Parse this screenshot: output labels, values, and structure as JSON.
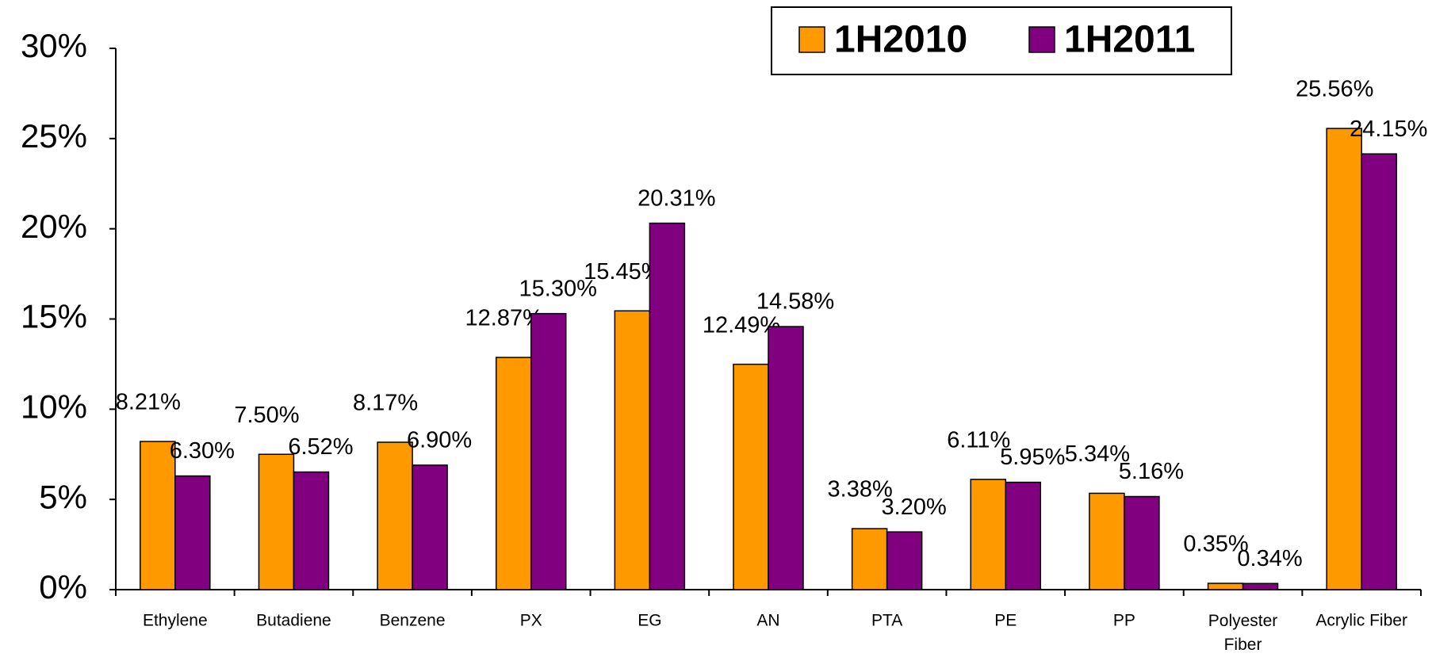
{
  "chart_data": {
    "type": "bar",
    "categories": [
      "Ethylene",
      "Butadiene",
      "Benzene",
      "PX",
      "EG",
      "AN",
      "PTA",
      "PE",
      "PP",
      "Polyester Fiber",
      "Acrylic Fiber"
    ],
    "series": [
      {
        "name": "1H2010",
        "color": "#ff9900",
        "values": [
          8.21,
          7.5,
          8.17,
          12.87,
          15.45,
          12.49,
          3.38,
          6.11,
          5.34,
          0.35,
          25.56
        ],
        "value_labels": [
          "8.21%",
          "7.50%",
          "8.17%",
          "12.87%",
          "15.45%",
          "12.49%",
          "3.38%",
          "6.11%",
          "5.34%",
          "0.35%",
          "25.56%"
        ]
      },
      {
        "name": "1H2011",
        "color": "#800080",
        "values": [
          6.3,
          6.52,
          6.9,
          15.3,
          20.31,
          14.58,
          3.2,
          5.95,
          5.16,
          0.34,
          24.15
        ],
        "value_labels": [
          "6.30%",
          "6.52%",
          "6.90%",
          "15.30%",
          "20.31%",
          "14.58%",
          "3.20%",
          "5.95%",
          "5.16%",
          "0.34%",
          "24.15%"
        ]
      }
    ],
    "ylim": [
      0,
      30
    ],
    "yticks": [
      {
        "value": 0,
        "label": "0%"
      },
      {
        "value": 5,
        "label": "5%"
      },
      {
        "value": 10,
        "label": "10%"
      },
      {
        "value": 15,
        "label": "15%"
      },
      {
        "value": 20,
        "label": "20%"
      },
      {
        "value": 25,
        "label": "25%"
      },
      {
        "value": 30,
        "label": "30%"
      }
    ],
    "legend": "top-right"
  }
}
